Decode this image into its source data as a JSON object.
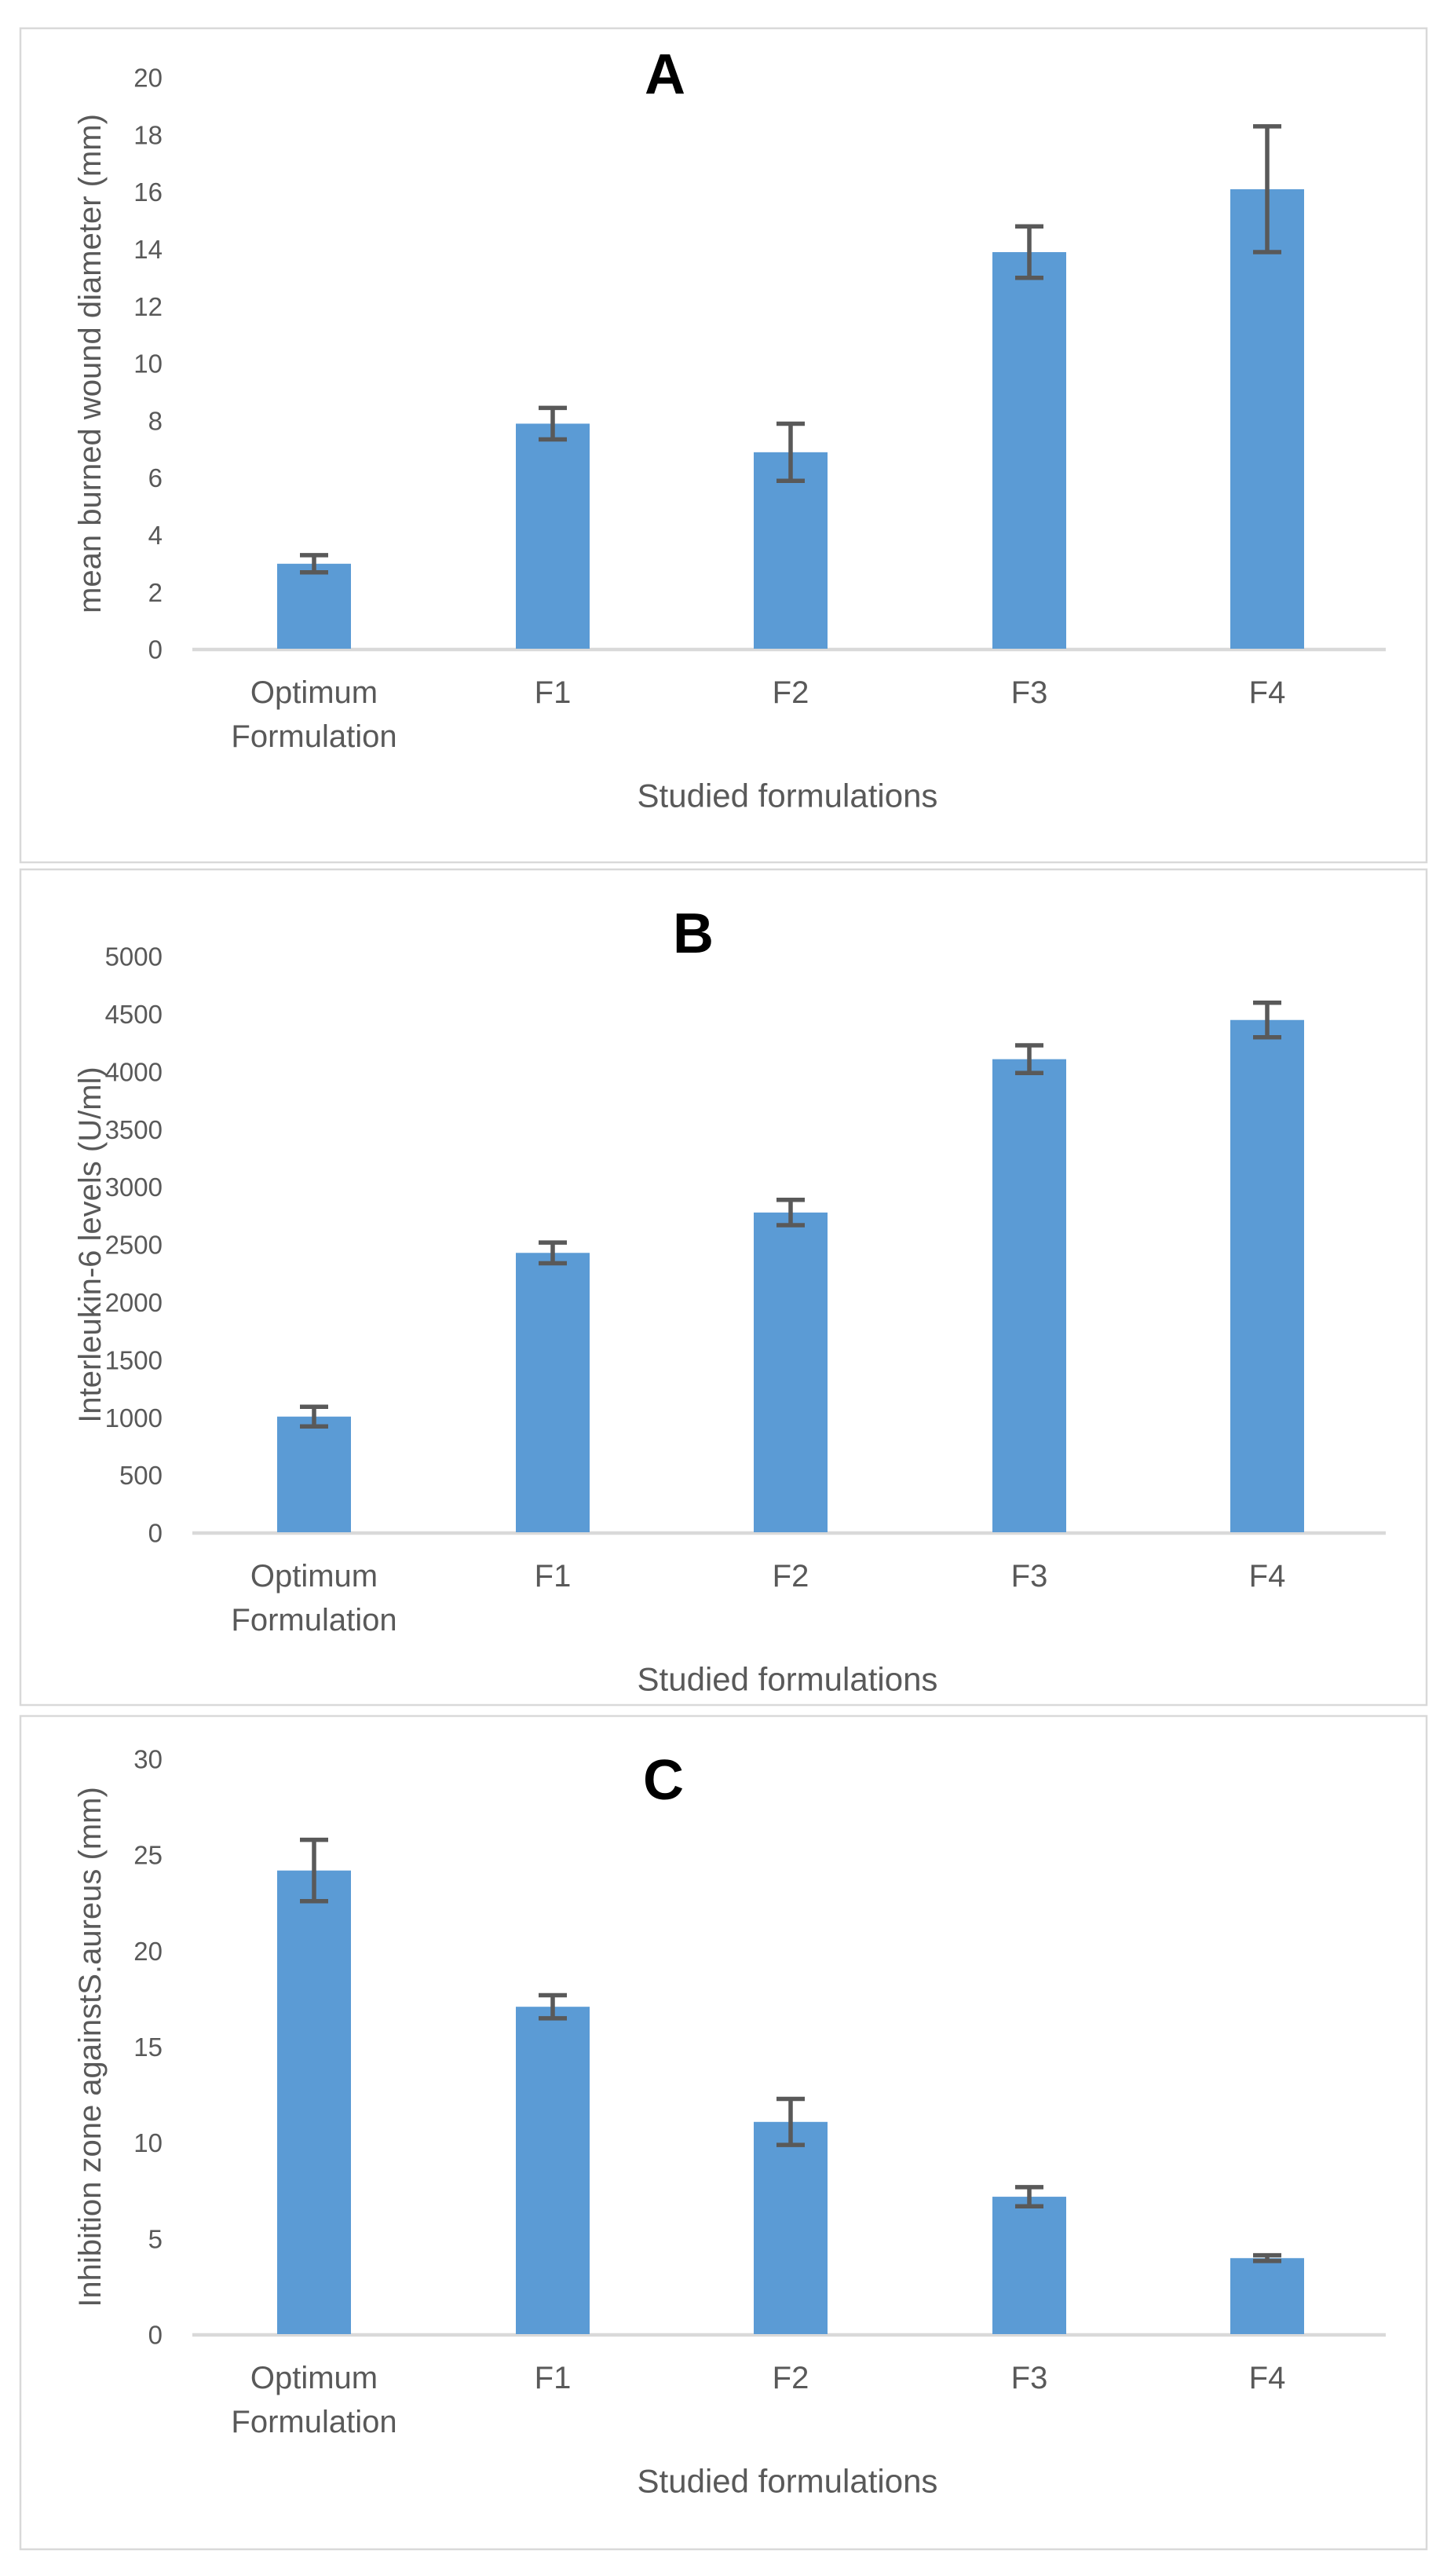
{
  "figure": {
    "background": "#ffffff",
    "panel_border_color": "#d9d9d9",
    "panel_fill": "#ffffff"
  },
  "colors": {
    "bar": "#5b9bd5",
    "error_bar": "#595959",
    "axis_line": "#d9d9d9",
    "tick_text": "#595959",
    "label_text": "#595959",
    "letter_text": "#000000"
  },
  "chart_data": [
    {
      "type": "bar",
      "panel_letter": "A",
      "title": "A",
      "xlabel": "Studied formulations",
      "ylabel": "mean burned wound diameter (mm)",
      "categories": [
        "Optimum Formulation",
        "F1",
        "F2",
        "F3",
        "F4"
      ],
      "values": [
        3.0,
        7.9,
        6.9,
        13.9,
        16.1
      ],
      "errors": [
        0.3,
        0.55,
        1.0,
        0.9,
        2.2
      ],
      "ylim": [
        0,
        20
      ],
      "ytick_step": 2,
      "ytick_labels": [
        "0",
        "2",
        "4",
        "6",
        "8",
        "10",
        "12",
        "14",
        "16",
        "18",
        "20"
      ],
      "grid": "off",
      "legend": "none"
    },
    {
      "type": "bar",
      "panel_letter": "B",
      "title": "B",
      "xlabel": "Studied formulations",
      "ylabel": "Interleukin-6 levels (U/ml)",
      "categories": [
        "Optimum Formulation",
        "F1",
        "F2",
        "F3",
        "F4"
      ],
      "values": [
        1010,
        2430,
        2780,
        4110,
        4450
      ],
      "errors": [
        85,
        90,
        110,
        120,
        150
      ],
      "ylim": [
        0,
        5000
      ],
      "ytick_step": 500,
      "ytick_labels": [
        "0",
        "500",
        "1000",
        "1500",
        "2000",
        "2500",
        "3000",
        "3500",
        "4000",
        "4500",
        "5000"
      ],
      "grid": "off",
      "legend": "none"
    },
    {
      "type": "bar",
      "panel_letter": "C",
      "title": "C",
      "xlabel": "Studied formulations",
      "ylabel": "Inhibition zone againstS.aureus (mm)",
      "categories": [
        "Optimum Formulation",
        "F1",
        "F2",
        "F3",
        "F4"
      ],
      "values": [
        24.2,
        17.1,
        11.1,
        7.2,
        4.0
      ],
      "errors": [
        1.6,
        0.6,
        1.2,
        0.5,
        0.15
      ],
      "ylim": [
        0,
        30
      ],
      "ytick_step": 5,
      "ytick_labels": [
        "0",
        "5",
        "10",
        "15",
        "20",
        "25",
        "30"
      ],
      "grid": "off",
      "legend": "none"
    }
  ]
}
